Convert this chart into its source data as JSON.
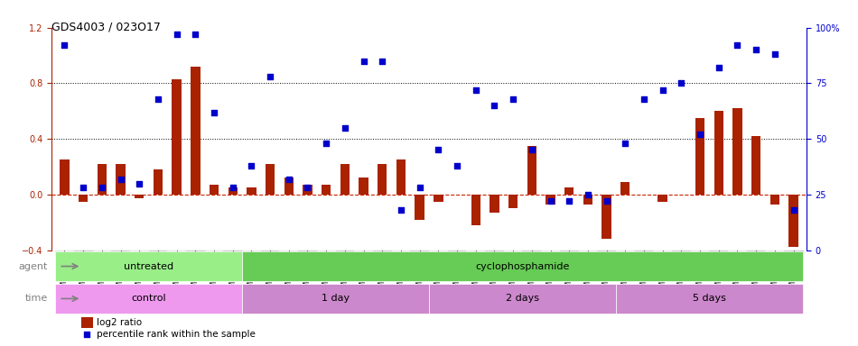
{
  "title": "GDS4003 / 023O17",
  "samples": [
    "GSM677900",
    "GSM677901",
    "GSM677902",
    "GSM677903",
    "GSM677904",
    "GSM677905",
    "GSM677906",
    "GSM677907",
    "GSM677908",
    "GSM677909",
    "GSM677910",
    "GSM677911",
    "GSM677912",
    "GSM677913",
    "GSM677914",
    "GSM677915",
    "GSM677916",
    "GSM677917",
    "GSM677918",
    "GSM677919",
    "GSM677920",
    "GSM677921",
    "GSM677922",
    "GSM677923",
    "GSM677924",
    "GSM677925",
    "GSM677926",
    "GSM677927",
    "GSM677928",
    "GSM677929",
    "GSM677930",
    "GSM677931",
    "GSM677932",
    "GSM677933",
    "GSM677934",
    "GSM677935",
    "GSM677936",
    "GSM677937",
    "GSM677938",
    "GSM677939"
  ],
  "log2_ratio": [
    0.25,
    -0.05,
    0.22,
    0.22,
    -0.03,
    0.18,
    0.83,
    0.92,
    0.07,
    0.05,
    0.05,
    0.22,
    0.12,
    0.07,
    0.07,
    0.22,
    0.12,
    0.22,
    0.25,
    -0.18,
    -0.05,
    0.0,
    -0.22,
    -0.13,
    -0.1,
    0.35,
    -0.07,
    0.05,
    -0.07,
    -0.32,
    0.09,
    0.0,
    -0.05,
    0.0,
    0.55,
    0.6,
    0.62,
    0.42,
    -0.07,
    -0.38
  ],
  "percentile": [
    92,
    28,
    28,
    32,
    30,
    68,
    97,
    97,
    62,
    28,
    38,
    78,
    32,
    28,
    48,
    55,
    85,
    85,
    18,
    28,
    45,
    38,
    72,
    65,
    68,
    45,
    22,
    22,
    25,
    22,
    48,
    68,
    72,
    75,
    52,
    82,
    92,
    90,
    88,
    18
  ],
  "bar_color": "#aa2200",
  "dot_color": "#0000cc",
  "zero_line_color": "#cc2200",
  "grid_color": "#333333",
  "ylim_left": [
    -0.4,
    1.2
  ],
  "ylim_right": [
    0,
    100
  ],
  "yticks_left": [
    -0.4,
    0.0,
    0.4,
    0.8,
    1.2
  ],
  "yticks_right": [
    0,
    25,
    50,
    75,
    100
  ],
  "hlines": [
    0.0,
    0.4,
    0.8
  ],
  "agent_groups": [
    {
      "label": "untreated",
      "start": 0,
      "end": 9,
      "color": "#99ee88"
    },
    {
      "label": "cyclophosphamide",
      "start": 10,
      "end": 39,
      "color": "#66cc55"
    }
  ],
  "time_groups": [
    {
      "label": "control",
      "start": 0,
      "end": 9,
      "color": "#ee99ee"
    },
    {
      "label": "1 day",
      "start": 10,
      "end": 19,
      "color": "#dd88dd"
    },
    {
      "label": "2 days",
      "start": 20,
      "end": 29,
      "color": "#dd88dd"
    },
    {
      "label": "5 days",
      "start": 30,
      "end": 39,
      "color": "#dd88dd"
    }
  ],
  "legend_items": [
    {
      "label": "log2 ratio",
      "color": "#aa2200",
      "marker": "s"
    },
    {
      "label": "percentile rank within the sample",
      "color": "#0000cc",
      "marker": "s"
    }
  ]
}
